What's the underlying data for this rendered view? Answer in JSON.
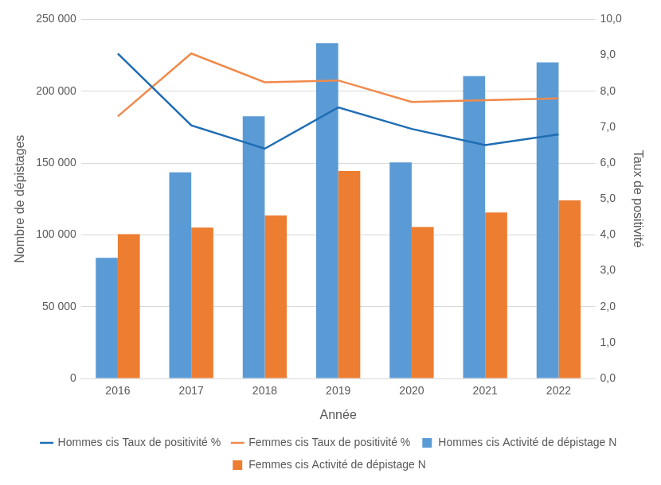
{
  "chart_data": {
    "type": "bar",
    "x_label": "Année",
    "y_label": "Nombre de dépistages",
    "y2_label": "Taux de positivité",
    "categories": [
      "2016",
      "2017",
      "2018",
      "2019",
      "2020",
      "2021",
      "2022"
    ],
    "series": [
      {
        "name": "Hommes cis Activité de dépistage N",
        "type": "bar",
        "color": "#5b9bd5",
        "values": [
          84000,
          143500,
          182500,
          233500,
          150500,
          210500,
          220000
        ]
      },
      {
        "name": "Femmes cis Activité de dépistage N",
        "type": "bar",
        "color": "#ed7d31",
        "values": [
          100500,
          105000,
          113500,
          144500,
          105500,
          115500,
          124000
        ]
      },
      {
        "name": "Hommes cis Taux de positivité %",
        "type": "line",
        "axis": "y2",
        "color": "#1f6db3",
        "values": [
          9.05,
          7.05,
          6.4,
          7.55,
          6.95,
          6.5,
          6.8
        ]
      },
      {
        "name": "Femmes cis Taux de positivité %",
        "type": "line",
        "axis": "y2",
        "color": "#f08a4b",
        "values": [
          7.3,
          9.05,
          8.25,
          8.3,
          7.7,
          7.75,
          7.8
        ]
      }
    ],
    "ylim": [
      0,
      250000
    ],
    "yticks": [
      0,
      {
        "value": 50000,
        "label": "50 000"
      },
      {
        "value": 100000,
        "label": "100 000"
      },
      {
        "value": 150000,
        "label": "150 000"
      },
      {
        "value": 200000,
        "label": "200 000"
      },
      {
        "value": 250000,
        "label": "250 000"
      }
    ],
    "y2lim": [
      0,
      10
    ],
    "y2ticks": [
      {
        "value": 0,
        "label": "0,0"
      },
      {
        "value": 1,
        "label": "1,0"
      },
      {
        "value": 2,
        "label": "2,0"
      },
      {
        "value": 3,
        "label": "3,0"
      },
      {
        "value": 4,
        "label": "4,0"
      },
      {
        "value": 5,
        "label": "5,0"
      },
      {
        "value": 6,
        "label": "6,0"
      },
      {
        "value": 7,
        "label": "7,0"
      },
      {
        "value": 8,
        "label": "8,0"
      },
      {
        "value": 9,
        "label": "9,0"
      },
      {
        "value": 10,
        "label": "10,0"
      }
    ],
    "grid": true,
    "legend": "bottom"
  }
}
